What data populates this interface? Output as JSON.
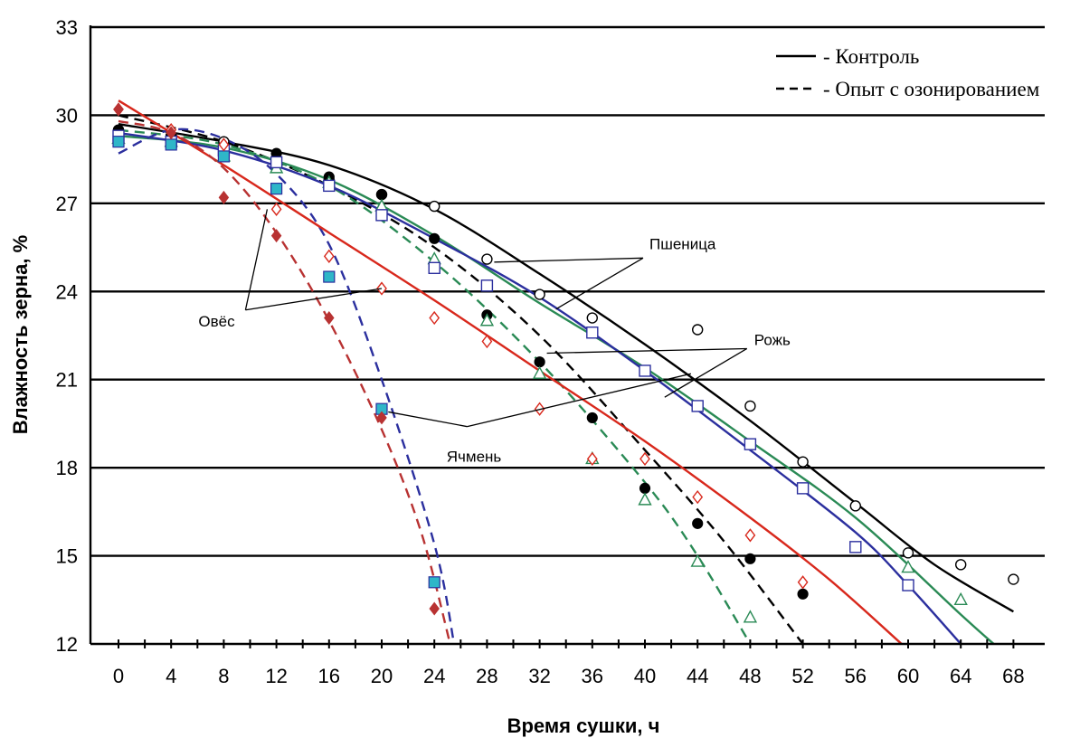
{
  "chart_data": {
    "type": "line",
    "xlabel": "Время сушки, ч",
    "ylabel": "Влажность зерна, %",
    "xlim": [
      0,
      68
    ],
    "ylim": [
      12,
      33
    ],
    "x_ticks": [
      0,
      4,
      8,
      12,
      16,
      20,
      24,
      28,
      32,
      36,
      40,
      44,
      48,
      52,
      56,
      60,
      64,
      68
    ],
    "y_ticks": [
      12,
      15,
      18,
      21,
      24,
      27,
      30,
      33
    ],
    "grid": "horizontal",
    "legend": {
      "position": "top-right",
      "entries": [
        {
          "style": "solid",
          "label": "- Контроль"
        },
        {
          "style": "dashed",
          "label": "- Опыт с озонированием"
        }
      ]
    },
    "annotations": [
      {
        "text": "Пшеница",
        "x": 40,
        "y": 25.2
      },
      {
        "text": "Рожь",
        "x": 48.3,
        "y": 22.3
      },
      {
        "text": "Овёс",
        "x": 8,
        "y": 23.0
      },
      {
        "text": "Ячмень",
        "x": 25,
        "y": 19.0
      }
    ],
    "colors": {
      "wheat": "#000000",
      "rye": "#2a8a55",
      "barley": "#2b2f9e",
      "barley_control": "#2e6fb0",
      "oats": "#d8281c",
      "oats_experiment": "#b83232"
    },
    "series": [
      {
        "label": "Пшеница",
        "style": "solid",
        "color": "#000000",
        "curve": [
          [
            0,
            29.7
          ],
          [
            8,
            29.1
          ],
          [
            16,
            28.3
          ],
          [
            24,
            26.8
          ],
          [
            32,
            24.6
          ],
          [
            40,
            22.2
          ],
          [
            48,
            19.6
          ],
          [
            56,
            16.8
          ],
          [
            62,
            14.7
          ],
          [
            68,
            13.1
          ]
        ],
        "points": [
          [
            0,
            29.5
          ],
          [
            4,
            29.3
          ],
          [
            8,
            29.1
          ],
          [
            12,
            28.5
          ],
          [
            16,
            27.8
          ],
          [
            20,
            27.3
          ],
          [
            24,
            26.9
          ],
          [
            28,
            25.1
          ],
          [
            32,
            23.9
          ],
          [
            36,
            23.1
          ],
          [
            44,
            22.7
          ],
          [
            48,
            20.1
          ],
          [
            52,
            18.2
          ],
          [
            56,
            16.7
          ],
          [
            60,
            15.1
          ],
          [
            64,
            14.7
          ],
          [
            68,
            14.2
          ]
        ],
        "marker": "circle-open"
      },
      {
        "label": "Пшеница",
        "style": "dashed",
        "color": "#000000",
        "curve": [
          [
            0,
            30.0
          ],
          [
            8,
            29.1
          ],
          [
            16,
            27.6
          ],
          [
            24,
            25.5
          ],
          [
            32,
            22.5
          ],
          [
            40,
            18.6
          ],
          [
            46,
            15.5
          ],
          [
            52,
            12.0
          ]
        ],
        "points": [
          [
            0,
            29.5
          ],
          [
            4,
            29.3
          ],
          [
            8,
            28.8
          ],
          [
            12,
            28.7
          ],
          [
            16,
            27.9
          ],
          [
            20,
            27.3
          ],
          [
            24,
            25.8
          ],
          [
            28,
            23.2
          ],
          [
            32,
            21.6
          ],
          [
            36,
            19.7
          ],
          [
            40,
            17.3
          ],
          [
            44,
            16.1
          ],
          [
            48,
            14.9
          ],
          [
            52,
            13.7
          ]
        ],
        "marker": "circle-filled"
      },
      {
        "label": "Рожь",
        "style": "solid",
        "color": "#2a8a55",
        "curve": [
          [
            0,
            29.3
          ],
          [
            8,
            28.9
          ],
          [
            16,
            27.8
          ],
          [
            24,
            25.9
          ],
          [
            32,
            23.6
          ],
          [
            40,
            21.4
          ],
          [
            48,
            18.9
          ],
          [
            56,
            16.3
          ],
          [
            64,
            13.0
          ],
          [
            66.5,
            12.0
          ]
        ],
        "points": [
          [
            0,
            29.2
          ],
          [
            4,
            29.1
          ],
          [
            8,
            28.6
          ],
          [
            12,
            28.2
          ],
          [
            16,
            27.7
          ],
          [
            20,
            26.9
          ],
          [
            24,
            25.1
          ],
          [
            28,
            23.0
          ],
          [
            32,
            21.2
          ],
          [
            36,
            18.3
          ],
          [
            40,
            16.9
          ],
          [
            44,
            14.8
          ],
          [
            48,
            12.9
          ],
          [
            52,
            null
          ],
          [
            60,
            14.6
          ],
          [
            64,
            13.5
          ]
        ],
        "marker": "triangle-open"
      },
      {
        "label": "Рожь",
        "style": "dashed",
        "color": "#2a8a55",
        "curve": [
          [
            0,
            29.5
          ],
          [
            8,
            29.0
          ],
          [
            16,
            27.6
          ],
          [
            24,
            25.0
          ],
          [
            32,
            21.6
          ],
          [
            40,
            17.5
          ],
          [
            44,
            15.0
          ],
          [
            48,
            12.0
          ]
        ],
        "points": [],
        "marker": "none"
      },
      {
        "label": "Ячмень",
        "style": "solid",
        "color": "#2b2f9e",
        "curve": [
          [
            0,
            29.4
          ],
          [
            8,
            28.8
          ],
          [
            16,
            27.6
          ],
          [
            24,
            25.8
          ],
          [
            32,
            23.8
          ],
          [
            40,
            21.3
          ],
          [
            48,
            18.6
          ],
          [
            56,
            15.8
          ],
          [
            60,
            14.0
          ],
          [
            64,
            12.0
          ]
        ],
        "points": [
          [
            0,
            29.3
          ],
          [
            4,
            29.1
          ],
          [
            8,
            28.8
          ],
          [
            12,
            28.4
          ],
          [
            16,
            27.6
          ],
          [
            20,
            26.6
          ],
          [
            24,
            24.8
          ],
          [
            28,
            24.2
          ],
          [
            36,
            22.6
          ],
          [
            40,
            21.3
          ],
          [
            44,
            20.1
          ],
          [
            48,
            18.8
          ],
          [
            52,
            17.3
          ],
          [
            56,
            15.3
          ],
          [
            60,
            14.0
          ]
        ],
        "marker": "square-open"
      },
      {
        "label": "Ячмень",
        "style": "dashed",
        "color": "#2b2f9e",
        "curve": [
          [
            0,
            28.7
          ],
          [
            4,
            29.5
          ],
          [
            8,
            29.2
          ],
          [
            12,
            28.0
          ],
          [
            16,
            25.6
          ],
          [
            20,
            21.0
          ],
          [
            24,
            15.4
          ],
          [
            25.5,
            12.0
          ]
        ],
        "points": [
          [
            0,
            29.1
          ],
          [
            4,
            29.0
          ],
          [
            8,
            28.6
          ],
          [
            12,
            27.5
          ],
          [
            16,
            24.5
          ],
          [
            20,
            20.0
          ],
          [
            24,
            14.1
          ]
        ],
        "marker": "square-filled"
      },
      {
        "label": "Овёс",
        "style": "solid",
        "color": "#d8281c",
        "curve": [
          [
            0,
            30.5
          ],
          [
            8,
            28.3
          ],
          [
            16,
            26.0
          ],
          [
            24,
            23.7
          ],
          [
            32,
            21.3
          ],
          [
            40,
            18.9
          ],
          [
            48,
            16.3
          ],
          [
            54,
            14.2
          ],
          [
            59.5,
            12.0
          ]
        ],
        "points": [
          [
            0,
            30.2
          ],
          [
            4,
            29.5
          ],
          [
            8,
            29.0
          ],
          [
            12,
            26.8
          ],
          [
            16,
            25.2
          ],
          [
            20,
            24.1
          ],
          [
            24,
            23.1
          ],
          [
            28,
            22.3
          ],
          [
            32,
            20.0
          ],
          [
            36,
            18.3
          ],
          [
            40,
            18.3
          ],
          [
            44,
            17.0
          ],
          [
            48,
            15.7
          ],
          [
            52,
            14.1
          ]
        ],
        "marker": "diamond-open"
      },
      {
        "label": "Овёс",
        "style": "dashed",
        "color": "#b83232",
        "curve": [
          [
            0,
            29.8
          ],
          [
            4,
            29.4
          ],
          [
            8,
            28.2
          ],
          [
            12,
            26.0
          ],
          [
            16,
            23.0
          ],
          [
            20,
            19.3
          ],
          [
            23,
            15.8
          ],
          [
            25.2,
            12.0
          ]
        ],
        "points": [
          [
            0,
            30.2
          ],
          [
            4,
            29.4
          ],
          [
            8,
            27.2
          ],
          [
            12,
            25.9
          ],
          [
            16,
            23.1
          ],
          [
            20,
            19.7
          ],
          [
            24,
            13.2
          ]
        ],
        "marker": "diamond-filled"
      }
    ]
  }
}
